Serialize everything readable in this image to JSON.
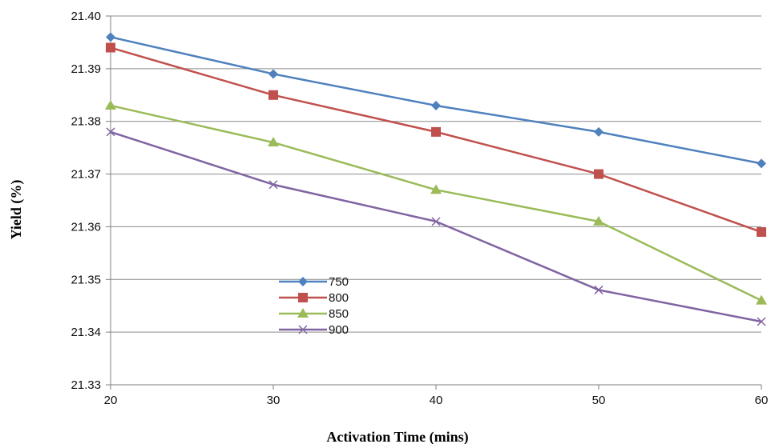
{
  "chart_data": {
    "type": "line",
    "title": "",
    "xlabel": "Activation Time (mins)",
    "ylabel": "Yield (%)",
    "x": [
      20,
      30,
      40,
      50,
      60
    ],
    "x_ticks": [
      "20",
      "30",
      "40",
      "50",
      "60"
    ],
    "xlim": [
      20,
      60
    ],
    "ylim": [
      21.33,
      21.4
    ],
    "y_ticks": [
      "21.33",
      "21.34",
      "21.35",
      "21.36",
      "21.37",
      "21.38",
      "21.39",
      "21.40"
    ],
    "grid": {
      "horizontal": true,
      "vertical": false
    },
    "legend_placement": "center-left",
    "series": [
      {
        "name": "750",
        "color": "#4F81BD",
        "marker": "diamond",
        "values": [
          21.396,
          21.389,
          21.383,
          21.378,
          21.372
        ]
      },
      {
        "name": "800",
        "color": "#C0504D",
        "marker": "square",
        "values": [
          21.394,
          21.385,
          21.378,
          21.37,
          21.359
        ]
      },
      {
        "name": "850",
        "color": "#9BBB59",
        "marker": "triangle",
        "values": [
          21.383,
          21.376,
          21.367,
          21.361,
          21.346
        ]
      },
      {
        "name": "900",
        "color": "#8064A2",
        "marker": "x",
        "values": [
          21.378,
          21.368,
          21.361,
          21.348,
          21.342
        ]
      }
    ]
  }
}
